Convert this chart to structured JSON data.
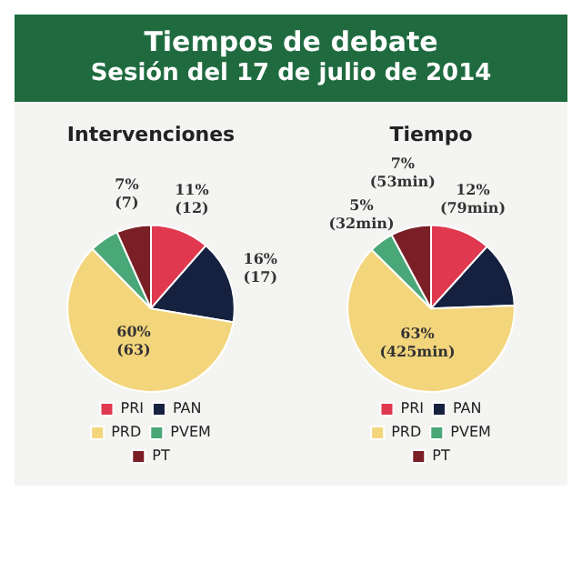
{
  "chart_data": [
    {
      "type": "pie",
      "title": "Intervenciones",
      "annotations": [
        "Tiempos de debate",
        "Sesión del 17 de julio de 2014"
      ],
      "categories": [
        "PRI",
        "PAN",
        "PRD",
        "PVEM",
        "PT"
      ],
      "values": [
        12,
        17,
        63,
        6,
        7
      ],
      "colors": [
        "#e0394f",
        "#15213f",
        "#f3d57c",
        "#4aa878",
        "#7b1f27"
      ],
      "value_labels": [
        "11%\n(12)",
        "16%\n(17)",
        "60%\n(63)",
        null,
        "7%\n(7)"
      ],
      "legend": "bottom"
    },
    {
      "type": "pie",
      "title": "Tiempo",
      "categories": [
        "PRI",
        "PAN",
        "PRD",
        "PVEM",
        "PT"
      ],
      "values": [
        79,
        86,
        425,
        32,
        53
      ],
      "colors": [
        "#e0394f",
        "#15213f",
        "#f3d57c",
        "#4aa878",
        "#7b1f27"
      ],
      "value_labels": [
        "12%\n(79min)",
        null,
        "63%\n(425min)",
        "5%\n(32min)",
        "7%\n(53min)"
      ],
      "legend": "bottom"
    }
  ]
}
